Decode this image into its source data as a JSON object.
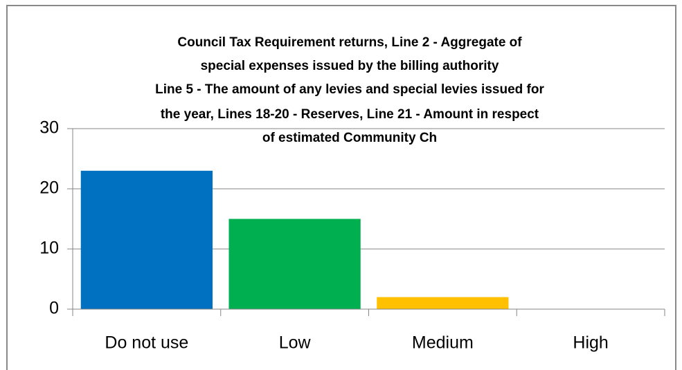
{
  "chart_data": {
    "type": "bar",
    "title": [
      "Council Tax Requirement returns, Line 2 - Aggregate of",
      "special expenses issued by the billing authority",
      "Line 5 - The amount of any levies and special levies issued for",
      "the year, Lines 18-20 - Reserves, Line 21 - Amount in respect",
      "of estimated Community Ch"
    ],
    "categories": [
      "Do not use",
      "Low",
      "Medium",
      "High"
    ],
    "values": [
      23,
      15,
      2,
      0
    ],
    "colors": [
      "#0070c0",
      "#00b050",
      "#ffc000",
      "#7030a0"
    ],
    "ylim": [
      0,
      30
    ],
    "yticks": [
      0,
      10,
      20,
      30
    ],
    "grid": true
  }
}
